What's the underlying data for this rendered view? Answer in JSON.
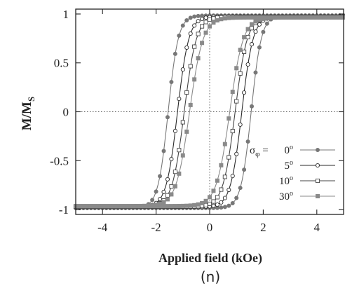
{
  "chart_data": {
    "type": "line",
    "xlabel": "Applied field (kOe)",
    "ylabel": "M/M",
    "ylabel_sub": "S",
    "xlim": [
      -5,
      5
    ],
    "ylim": [
      -1.05,
      1.05
    ],
    "xticks": [
      -4,
      -2,
      0,
      2,
      4
    ],
    "yticks": [
      -1,
      -0.5,
      0,
      0.5,
      1
    ],
    "xtick_labels": [
      "-4",
      "-2",
      "0",
      "2",
      "4"
    ],
    "ytick_labels": [
      "-1",
      "-0.5",
      "0",
      "0.5",
      "1"
    ],
    "reference_lines": {
      "x": 0,
      "y": 0,
      "style": "dotted"
    },
    "grid": false,
    "legend_placement": "lower-right",
    "legend_prefix": "σ",
    "legend_prefix_sub": "φ",
    "legend_prefix_eq": " =",
    "series": [
      {
        "name": "0°",
        "label_value": "0",
        "label_unit": "o",
        "marker": "filled-circle",
        "color": "#777777",
        "coercivity": 1.55,
        "width": 0.38,
        "saturation": 0.985
      },
      {
        "name": "5°",
        "label_value": "5",
        "label_unit": "o",
        "marker": "open-circle",
        "color": "#2a2a2a",
        "coercivity": 1.2,
        "width": 0.42,
        "saturation": 0.975
      },
      {
        "name": "10°",
        "label_value": "10",
        "label_unit": "o",
        "marker": "open-square",
        "color": "#444444",
        "coercivity": 0.95,
        "width": 0.45,
        "saturation": 0.97
      },
      {
        "name": "30°",
        "label_value": "30",
        "label_unit": "o",
        "marker": "filled-square",
        "color": "#8a8a8a",
        "coercivity": 0.75,
        "width": 0.5,
        "saturation": 0.965
      }
    ]
  },
  "caption": "(n)"
}
